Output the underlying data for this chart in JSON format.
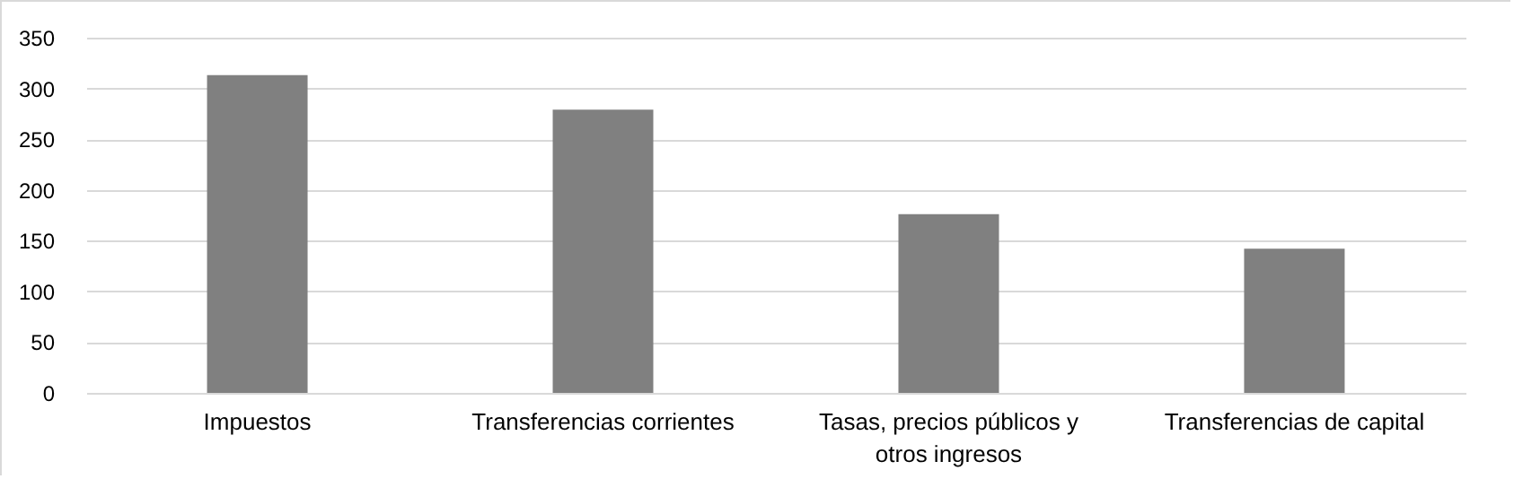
{
  "chart_data": {
    "type": "bar",
    "categories": [
      "Impuestos",
      "Transferencias corrientes",
      "Tasas, precios públicos y otros ingresos",
      "Transferencias de capital"
    ],
    "values": [
      313,
      279,
      176,
      142
    ],
    "color": "#808080",
    "ylim": [
      0,
      350
    ],
    "yticks": [
      0,
      50,
      100,
      150,
      200,
      250,
      300,
      350
    ],
    "grid": "y"
  }
}
